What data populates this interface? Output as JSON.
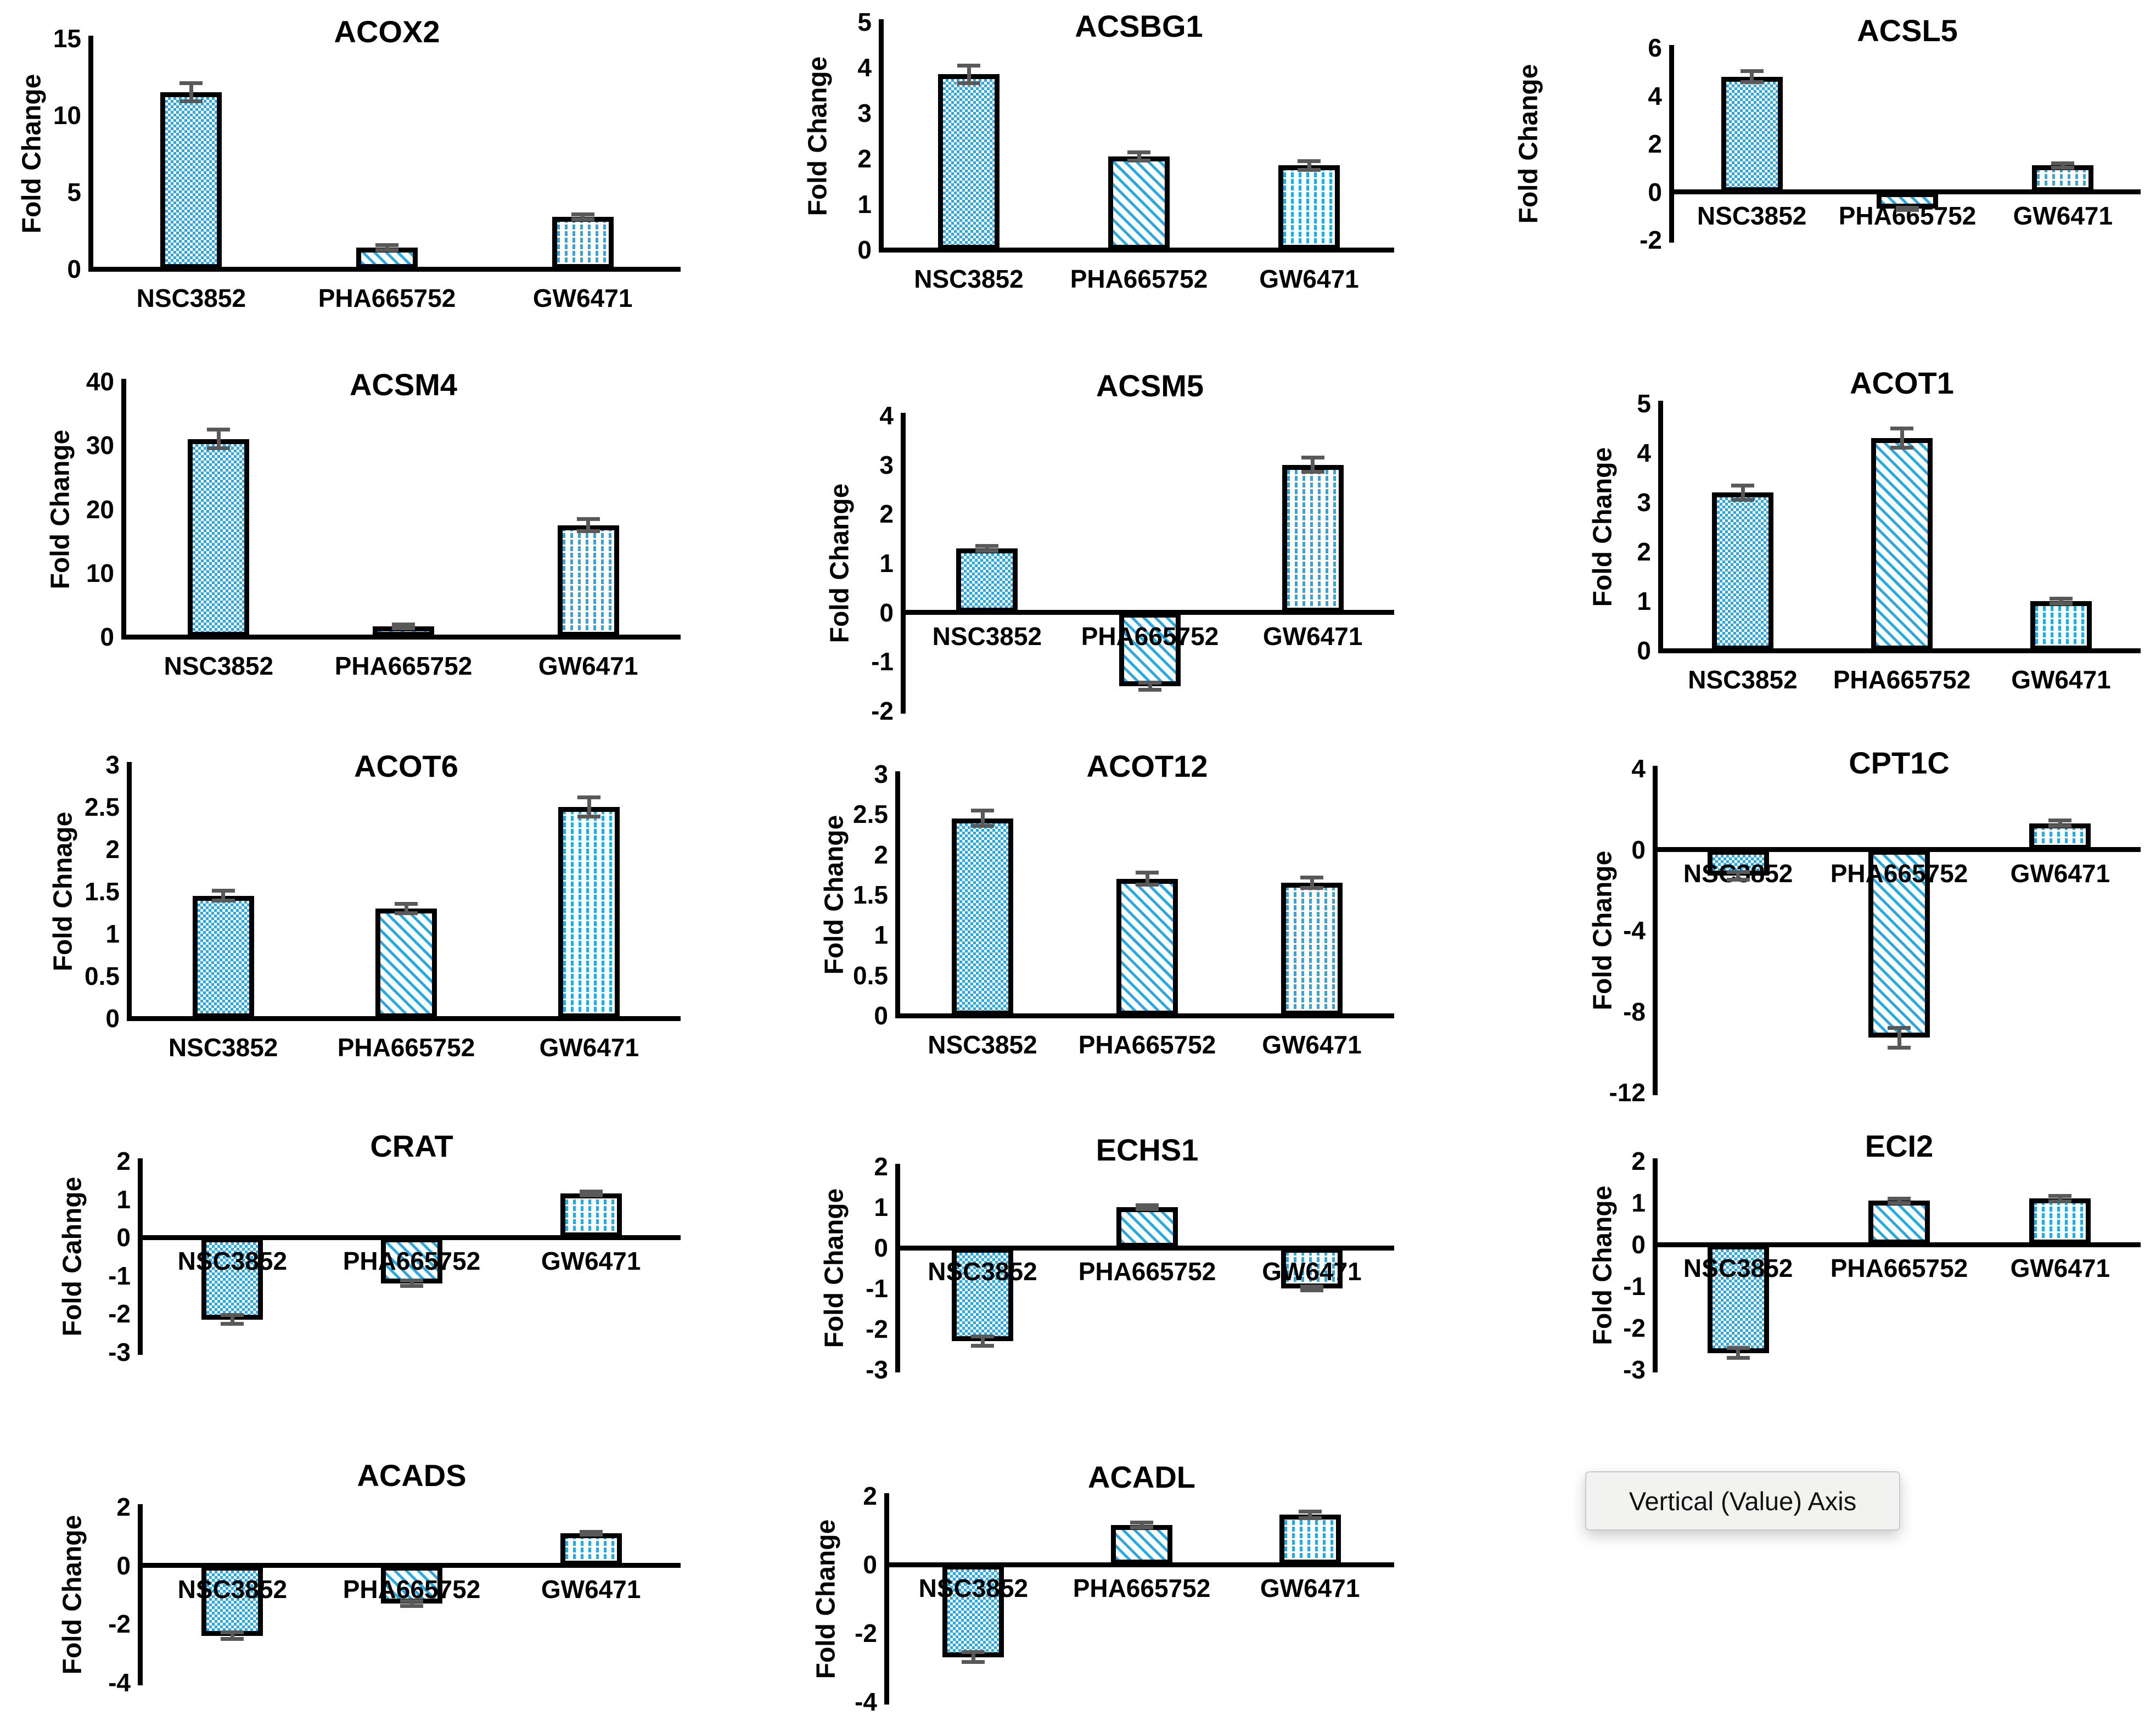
{
  "tooltip": {
    "text": "Vertical (Value) Axis"
  },
  "colors": {
    "bar_fill": "#29A9E1",
    "bar_border": "#000000",
    "error_bar": "#595959",
    "axis": "#000000",
    "tooltip_bg": "#F2F2F1",
    "tooltip_border": "#C9C9C9"
  },
  "patterns": [
    "checkerboard",
    "diagonal-dash",
    "vertical-dash"
  ],
  "categories": [
    "NSC3852",
    "PHA665752",
    "GW6471"
  ],
  "chart_data": [
    {
      "type": "bar",
      "title": "ACOX2",
      "ylabel": "Fold Change",
      "xlabel": "",
      "grid": false,
      "legend": "none",
      "ylim": [
        0,
        15
      ],
      "yticks": [
        0,
        5,
        10,
        15
      ],
      "categories": [
        "NSC3852",
        "PHA665752",
        "GW6471"
      ],
      "values": [
        11.5,
        1.4,
        3.4
      ],
      "errors": [
        0.6,
        0.18,
        0.18
      ]
    },
    {
      "type": "bar",
      "title": "ACSBG1",
      "ylabel": "Fold Change",
      "xlabel": "",
      "grid": false,
      "legend": "none",
      "ylim": [
        0,
        5
      ],
      "yticks": [
        0,
        1,
        2,
        3,
        4,
        5
      ],
      "categories": [
        "NSC3852",
        "PHA665752",
        "GW6471"
      ],
      "values": [
        3.85,
        2.05,
        1.85
      ],
      "errors": [
        0.2,
        0.1,
        0.1
      ]
    },
    {
      "type": "bar",
      "title": "ACSL5",
      "ylabel": "Fold Change",
      "xlabel": "",
      "grid": false,
      "legend": "none",
      "ylim": [
        -2,
        6
      ],
      "yticks": [
        -2,
        0,
        2,
        4,
        6
      ],
      "categories": [
        "NSC3852",
        "PHA665752",
        "GW6471"
      ],
      "values": [
        4.8,
        -0.7,
        1.1
      ],
      "errors": [
        0.25,
        0.06,
        0.1
      ]
    },
    {
      "type": "bar",
      "title": "ACSM4",
      "ylabel": "Fold Change",
      "xlabel": "",
      "grid": false,
      "legend": "none",
      "ylim": [
        0,
        40
      ],
      "yticks": [
        0,
        10,
        20,
        30,
        40
      ],
      "categories": [
        "NSC3852",
        "PHA665752",
        "GW6471"
      ],
      "values": [
        31,
        1.6,
        17.5
      ],
      "errors": [
        1.5,
        0.35,
        1.0
      ]
    },
    {
      "type": "bar",
      "title": "ACSM5",
      "ylabel": "Fold Change",
      "xlabel": "",
      "grid": false,
      "legend": "none",
      "ylim": [
        -2,
        4
      ],
      "yticks": [
        -2,
        -1,
        0,
        1,
        2,
        3,
        4
      ],
      "categories": [
        "NSC3852",
        "PHA665752",
        "GW6471"
      ],
      "values": [
        1.3,
        -1.5,
        3.0
      ],
      "errors": [
        0.06,
        0.08,
        0.15
      ]
    },
    {
      "type": "bar",
      "title": "ACOT1",
      "ylabel": "Fold Change",
      "xlabel": "",
      "grid": false,
      "legend": "none",
      "ylim": [
        0,
        5
      ],
      "yticks": [
        0,
        1,
        2,
        3,
        4,
        5
      ],
      "categories": [
        "NSC3852",
        "PHA665752",
        "GW6471"
      ],
      "values": [
        3.2,
        4.3,
        1.0
      ],
      "errors": [
        0.15,
        0.2,
        0.06
      ]
    },
    {
      "type": "bar",
      "title": "ACOT6",
      "ylabel": "Fold Chnage",
      "xlabel": "",
      "grid": false,
      "legend": "none",
      "ylim": [
        0,
        3
      ],
      "yticks": [
        0,
        0.5,
        1,
        1.5,
        2,
        2.5,
        3
      ],
      "categories": [
        "NSC3852",
        "PHA665752",
        "GW6471"
      ],
      "values": [
        1.45,
        1.3,
        2.5
      ],
      "errors": [
        0.06,
        0.06,
        0.12
      ]
    },
    {
      "type": "bar",
      "title": "ACOT12",
      "ylabel": "Fold Change",
      "xlabel": "",
      "grid": false,
      "legend": "none",
      "ylim": [
        0,
        3
      ],
      "yticks": [
        0,
        0.5,
        1,
        1.5,
        2,
        2.5,
        3
      ],
      "categories": [
        "NSC3852",
        "PHA665752",
        "GW6471"
      ],
      "values": [
        2.45,
        1.7,
        1.65
      ],
      "errors": [
        0.1,
        0.08,
        0.07
      ]
    },
    {
      "type": "bar",
      "title": "CPT1C",
      "ylabel": "Fold Change",
      "xlabel": "",
      "grid": false,
      "legend": "none",
      "ylim": [
        -12,
        4
      ],
      "yticks": [
        -12,
        -8,
        -4,
        0,
        4
      ],
      "categories": [
        "NSC3852",
        "PHA665752",
        "GW6471"
      ],
      "values": [
        -1.3,
        -9.3,
        1.3
      ],
      "errors": [
        0.2,
        0.5,
        0.15
      ]
    },
    {
      "type": "bar",
      "title": "CRAT",
      "ylabel": "Fold Cahnge",
      "xlabel": "",
      "grid": false,
      "legend": "none",
      "ylim": [
        -3,
        2
      ],
      "yticks": [
        -3,
        -2,
        -1,
        0,
        1,
        2
      ],
      "categories": [
        "NSC3852",
        "PHA665752",
        "GW6471"
      ],
      "values": [
        -2.15,
        -1.2,
        1.15
      ],
      "errors": [
        0.12,
        0.08,
        0.06
      ]
    },
    {
      "type": "bar",
      "title": "ECHS1",
      "ylabel": "Fold Change",
      "xlabel": "",
      "grid": false,
      "legend": "none",
      "ylim": [
        -3,
        2
      ],
      "yticks": [
        -3,
        -2,
        -1,
        0,
        1,
        2
      ],
      "categories": [
        "NSC3852",
        "PHA665752",
        "GW6471"
      ],
      "values": [
        -2.3,
        1.0,
        -1.0
      ],
      "errors": [
        0.12,
        0.06,
        0.06
      ]
    },
    {
      "type": "bar",
      "title": "ECI2",
      "ylabel": "Fold Change",
      "xlabel": "",
      "grid": false,
      "legend": "none",
      "ylim": [
        -3,
        2
      ],
      "yticks": [
        -3,
        -2,
        -1,
        0,
        1,
        2
      ],
      "categories": [
        "NSC3852",
        "PHA665752",
        "GW6471"
      ],
      "values": [
        -2.6,
        1.05,
        1.1
      ],
      "errors": [
        0.12,
        0.06,
        0.07
      ]
    },
    {
      "type": "bar",
      "title": "ACADS",
      "ylabel": "Fold Change",
      "xlabel": "",
      "grid": false,
      "legend": "none",
      "ylim": [
        -4,
        2
      ],
      "yticks": [
        -4,
        -2,
        0,
        2
      ],
      "categories": [
        "NSC3852",
        "PHA665752",
        "GW6471"
      ],
      "values": [
        -2.4,
        -1.3,
        1.1
      ],
      "errors": [
        0.12,
        0.1,
        0.06
      ]
    },
    {
      "type": "bar",
      "title": "ACADL",
      "ylabel": "Fold Change",
      "xlabel": "",
      "grid": false,
      "legend": "none",
      "ylim": [
        -4,
        2
      ],
      "yticks": [
        -4,
        -2,
        0,
        2
      ],
      "categories": [
        "NSC3852",
        "PHA665752",
        "GW6471"
      ],
      "values": [
        -2.7,
        1.15,
        1.45
      ],
      "errors": [
        0.15,
        0.08,
        0.1
      ]
    }
  ]
}
